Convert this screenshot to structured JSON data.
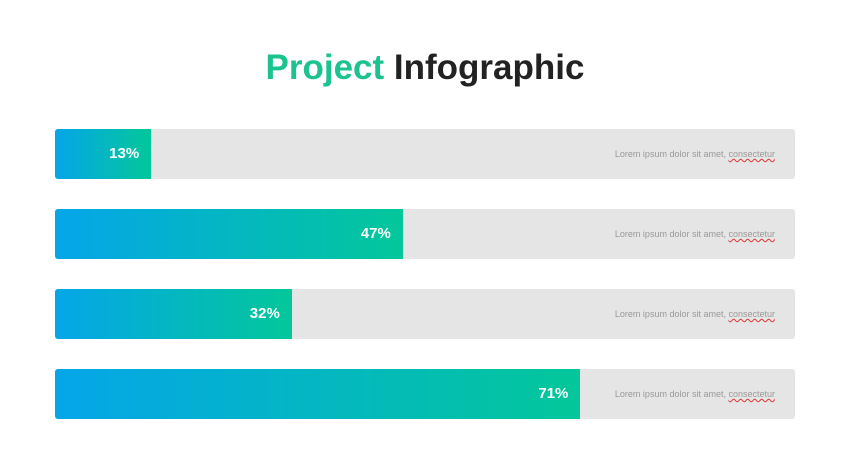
{
  "title": {
    "part1": "Project",
    "part2": "Infographic",
    "accent_color": "#1cc38f"
  },
  "chart_data": {
    "type": "bar",
    "orientation": "horizontal",
    "title": "Project Infographic",
    "unit": "%",
    "ylim": [
      0,
      100
    ],
    "gradient": [
      "#05a6e9",
      "#03c79a"
    ],
    "bars": [
      {
        "value": 13,
        "label": "13%",
        "desc_a": "Lorem ipsum dolor sit amet, ",
        "desc_b": "consectetur"
      },
      {
        "value": 47,
        "label": "47%",
        "desc_a": "Lorem ipsum dolor sit amet, ",
        "desc_b": "consectetur"
      },
      {
        "value": 32,
        "label": "32%",
        "desc_a": "Lorem ipsum dolor sit amet, ",
        "desc_b": "consectetur"
      },
      {
        "value": 71,
        "label": "71%",
        "desc_a": "Lorem ipsum dolor sit amet, ",
        "desc_b": "consectetur"
      }
    ]
  }
}
